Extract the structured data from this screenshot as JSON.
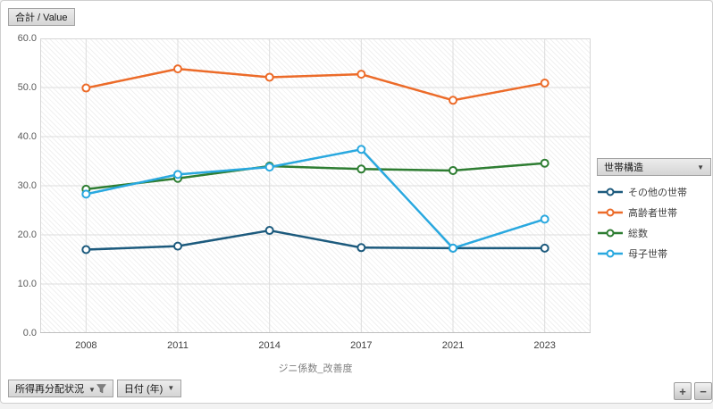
{
  "toolbar": {
    "value_label": "合計 / Value"
  },
  "legend": {
    "header": "世帯構造",
    "dropdown_icon": "▼"
  },
  "field_buttons": {
    "filter_label": "所得再分配状況",
    "filter_icon": "funnel",
    "filter_caret": "▼",
    "axis_label": "日付 (年)",
    "axis_caret": "▼"
  },
  "zoom_buttons": {
    "plus": "+",
    "minus": "−"
  },
  "chart_data": {
    "type": "line",
    "x": [
      "2008",
      "2011",
      "2014",
      "2017",
      "2021",
      "2023"
    ],
    "series": [
      {
        "name": "その他の世帯",
        "color": "#1C5A7D",
        "values": [
          17.0,
          17.7,
          20.9,
          17.4,
          17.3,
          17.3
        ]
      },
      {
        "name": "高齢者世帯",
        "color": "#EC6B29",
        "values": [
          49.9,
          53.8,
          52.1,
          52.7,
          47.4,
          50.9
        ]
      },
      {
        "name": "総数",
        "color": "#2E7D32",
        "values": [
          29.3,
          31.5,
          34.0,
          33.4,
          33.1,
          34.6
        ]
      },
      {
        "name": "母子世帯",
        "color": "#29A8DF",
        "values": [
          28.3,
          32.3,
          33.8,
          37.4,
          17.3,
          23.2
        ]
      }
    ],
    "title": "",
    "xlabel": "ジニ係数_改善度",
    "ylabel": "",
    "ylim": [
      0,
      60
    ],
    "yticks": [
      "60.0",
      "50.0",
      "40.0",
      "30.0",
      "20.0",
      "10.0",
      "0.0"
    ],
    "grid": true,
    "plot_background": "diagonal-hatch",
    "legend_title": "世帯構造",
    "legend_position": "right"
  }
}
